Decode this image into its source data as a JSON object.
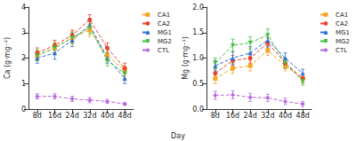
{
  "chart_data": [
    {
      "type": "line",
      "ylabel": "Ca (g·mg⁻¹)",
      "xlabel": "Day",
      "categories": [
        "8d",
        "16d",
        "24d",
        "32d",
        "40d",
        "48d"
      ],
      "ylim": [
        0,
        4
      ],
      "yticks": [
        0,
        1,
        2,
        3,
        4
      ],
      "grid": false,
      "legend": "right",
      "series": [
        {
          "name": "CA1",
          "color": "#f5a623",
          "marker": "square",
          "line_style": "dashed",
          "values": [
            2.1,
            2.4,
            2.8,
            3.1,
            2.1,
            1.5
          ],
          "errors": [
            0.2,
            0.2,
            0.25,
            0.25,
            0.2,
            0.2
          ]
        },
        {
          "name": "CA2",
          "color": "#e8412c",
          "marker": "circle",
          "line_style": "dashed",
          "values": [
            2.2,
            2.5,
            2.9,
            3.5,
            2.4,
            1.6
          ],
          "errors": [
            0.2,
            0.2,
            0.2,
            0.2,
            0.2,
            0.2
          ]
        },
        {
          "name": "MG1",
          "color": "#2f6fd6",
          "marker": "triangle",
          "line_style": "dashed",
          "values": [
            2.0,
            2.2,
            2.7,
            3.3,
            2.0,
            1.2
          ],
          "errors": [
            0.2,
            0.25,
            0.25,
            0.25,
            0.2,
            0.2
          ]
        },
        {
          "name": "MG2",
          "color": "#3fbf3f",
          "marker": "triangle-down",
          "line_style": "dashed",
          "values": [
            2.1,
            2.4,
            2.8,
            3.2,
            1.9,
            1.4
          ],
          "errors": [
            0.2,
            0.2,
            0.2,
            0.25,
            0.2,
            0.2
          ]
        },
        {
          "name": "CTL",
          "color": "#b565e0",
          "marker": "diamond",
          "line_style": "dashed",
          "values": [
            0.5,
            0.5,
            0.4,
            0.35,
            0.3,
            0.2
          ],
          "errors": [
            0.1,
            0.1,
            0.1,
            0.1,
            0.08,
            0.05
          ]
        }
      ]
    },
    {
      "type": "line",
      "ylabel": "Mg (g·mg⁻¹)",
      "categories": [
        "8d",
        "16d",
        "24d",
        "32d",
        "40d",
        "48d"
      ],
      "ylim": [
        0,
        2.0
      ],
      "yticks": [
        {
          "value": 0,
          "label": "0.0"
        },
        0.5,
        {
          "value": 1,
          "label": "1.0"
        },
        1.5,
        {
          "value": 2,
          "label": "2.0"
        }
      ],
      "grid": false,
      "legend": "right",
      "series": [
        {
          "name": "CA1",
          "color": "#f5a623",
          "marker": "square",
          "line_style": "dashed",
          "values": [
            0.6,
            0.8,
            0.85,
            1.15,
            0.85,
            0.6
          ],
          "errors": [
            0.1,
            0.1,
            0.1,
            0.1,
            0.1,
            0.08
          ]
        },
        {
          "name": "CA2",
          "color": "#e8412c",
          "marker": "circle",
          "line_style": "dashed",
          "values": [
            0.7,
            0.95,
            1.0,
            1.3,
            0.9,
            0.6
          ],
          "errors": [
            0.1,
            0.1,
            0.1,
            0.1,
            0.1,
            0.08
          ]
        },
        {
          "name": "MG1",
          "color": "#2f6fd6",
          "marker": "triangle",
          "line_style": "dashed",
          "values": [
            0.85,
            1.0,
            1.1,
            1.35,
            1.0,
            0.7
          ],
          "errors": [
            0.1,
            0.12,
            0.12,
            0.12,
            0.1,
            0.08
          ]
        },
        {
          "name": "MG2",
          "color": "#3fbf3f",
          "marker": "triangle-down",
          "line_style": "dashed",
          "values": [
            0.9,
            1.25,
            1.3,
            1.45,
            0.9,
            0.55
          ],
          "errors": [
            0.1,
            0.12,
            0.12,
            0.12,
            0.1,
            0.08
          ]
        },
        {
          "name": "CTL",
          "color": "#b565e0",
          "marker": "diamond",
          "line_style": "dashed",
          "values": [
            0.27,
            0.28,
            0.23,
            0.22,
            0.15,
            0.1
          ],
          "errors": [
            0.08,
            0.08,
            0.08,
            0.07,
            0.06,
            0.05
          ]
        }
      ]
    }
  ]
}
